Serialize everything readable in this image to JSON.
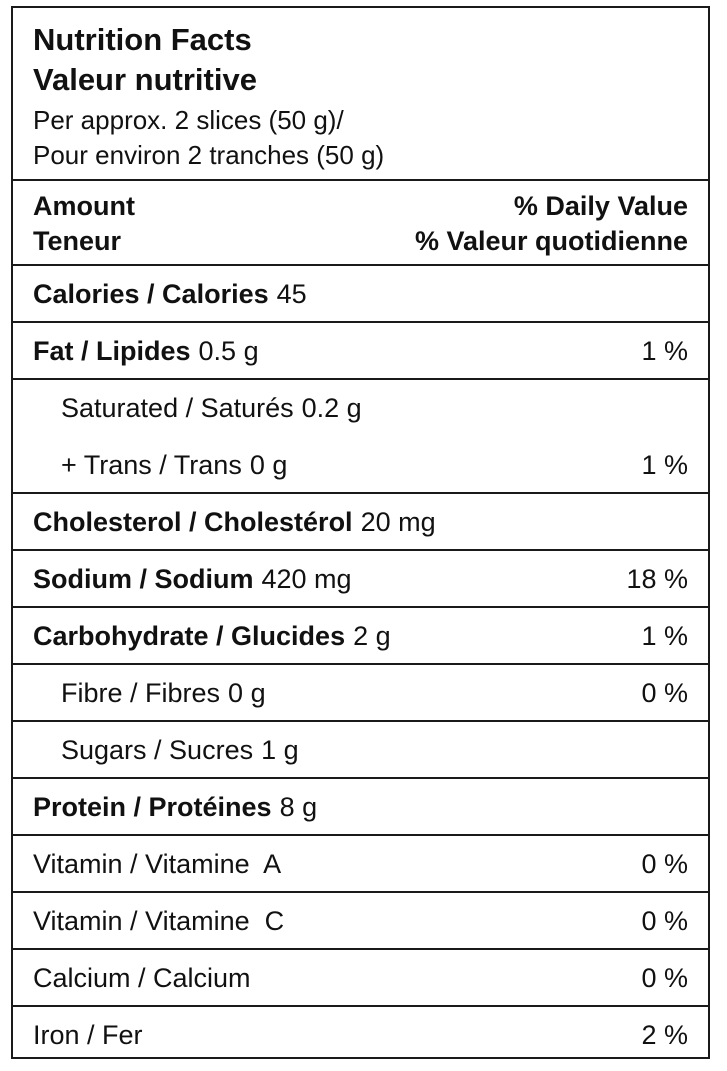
{
  "header": {
    "title_en": "Nutrition Facts",
    "title_fr": "Valeur nutritive",
    "serving_en": "Per approx. 2 slices (50 g)/",
    "serving_fr": "Pour environ 2 tranches (50 g)"
  },
  "columns": {
    "amount_en": "Amount",
    "amount_fr": "Teneur",
    "dv_en": "% Daily Value",
    "dv_fr": "% Valeur quotidienne"
  },
  "nutrients": [
    {
      "label": "Calories / Calories",
      "amount": "45",
      "dv": ""
    },
    {
      "label": "Fat / Lipides",
      "amount": "0.5 g",
      "dv": "1 %"
    },
    {
      "label": "Saturated / Saturés",
      "amount": "0.2 g",
      "dv": ""
    },
    {
      "label": "+ Trans / Trans",
      "amount": "0 g",
      "dv": "1 %"
    },
    {
      "label": "Cholesterol / Cholestérol",
      "amount": "20 mg",
      "dv": ""
    },
    {
      "label": "Sodium / Sodium",
      "amount": "420 mg",
      "dv": "18 %"
    },
    {
      "label": "Carbohydrate / Glucides",
      "amount": "2 g",
      "dv": "1 %"
    },
    {
      "label": "Fibre / Fibres",
      "amount": "0 g",
      "dv": "0 %"
    },
    {
      "label": "Sugars / Sucres",
      "amount": "1 g",
      "dv": ""
    },
    {
      "label": "Protein / Protéines",
      "amount": "8 g",
      "dv": ""
    },
    {
      "label": "Vitamin / Vitamine  A",
      "amount": "",
      "dv": "0 %"
    },
    {
      "label": "Vitamin / Vitamine  C",
      "amount": "",
      "dv": "0 %"
    },
    {
      "label": "Calcium / Calcium",
      "amount": "",
      "dv": "0 %"
    },
    {
      "label": "Iron / Fer",
      "amount": "",
      "dv": "2 %"
    }
  ]
}
